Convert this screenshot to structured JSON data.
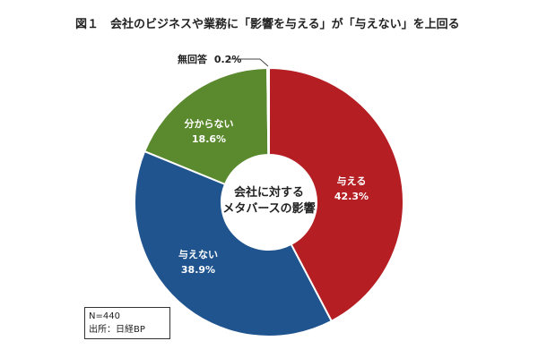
{
  "figure": {
    "title": "図１　会社のビジネスや業務に「影響を与える」が「与えない」を上回る"
  },
  "chart_data": {
    "type": "pie",
    "donut": true,
    "center_text": [
      "会社に対する",
      "メタバースの影響"
    ],
    "slices": [
      {
        "label": "与える",
        "value": 42.3,
        "value_label": "42.3%",
        "color": "#b51f24"
      },
      {
        "label": "与えない",
        "value": 38.9,
        "value_label": "38.9%",
        "color": "#20548f"
      },
      {
        "label": "分からない",
        "value": 18.6,
        "value_label": "18.6%",
        "color": "#5a8a2d"
      },
      {
        "label": "無回答",
        "value": 0.2,
        "value_label": "0.2%",
        "color": "#e6a23a"
      }
    ],
    "start": "12 o'clock",
    "direction": "clockwise"
  },
  "note": {
    "n": "N=440",
    "source": "出所：日経BP"
  }
}
